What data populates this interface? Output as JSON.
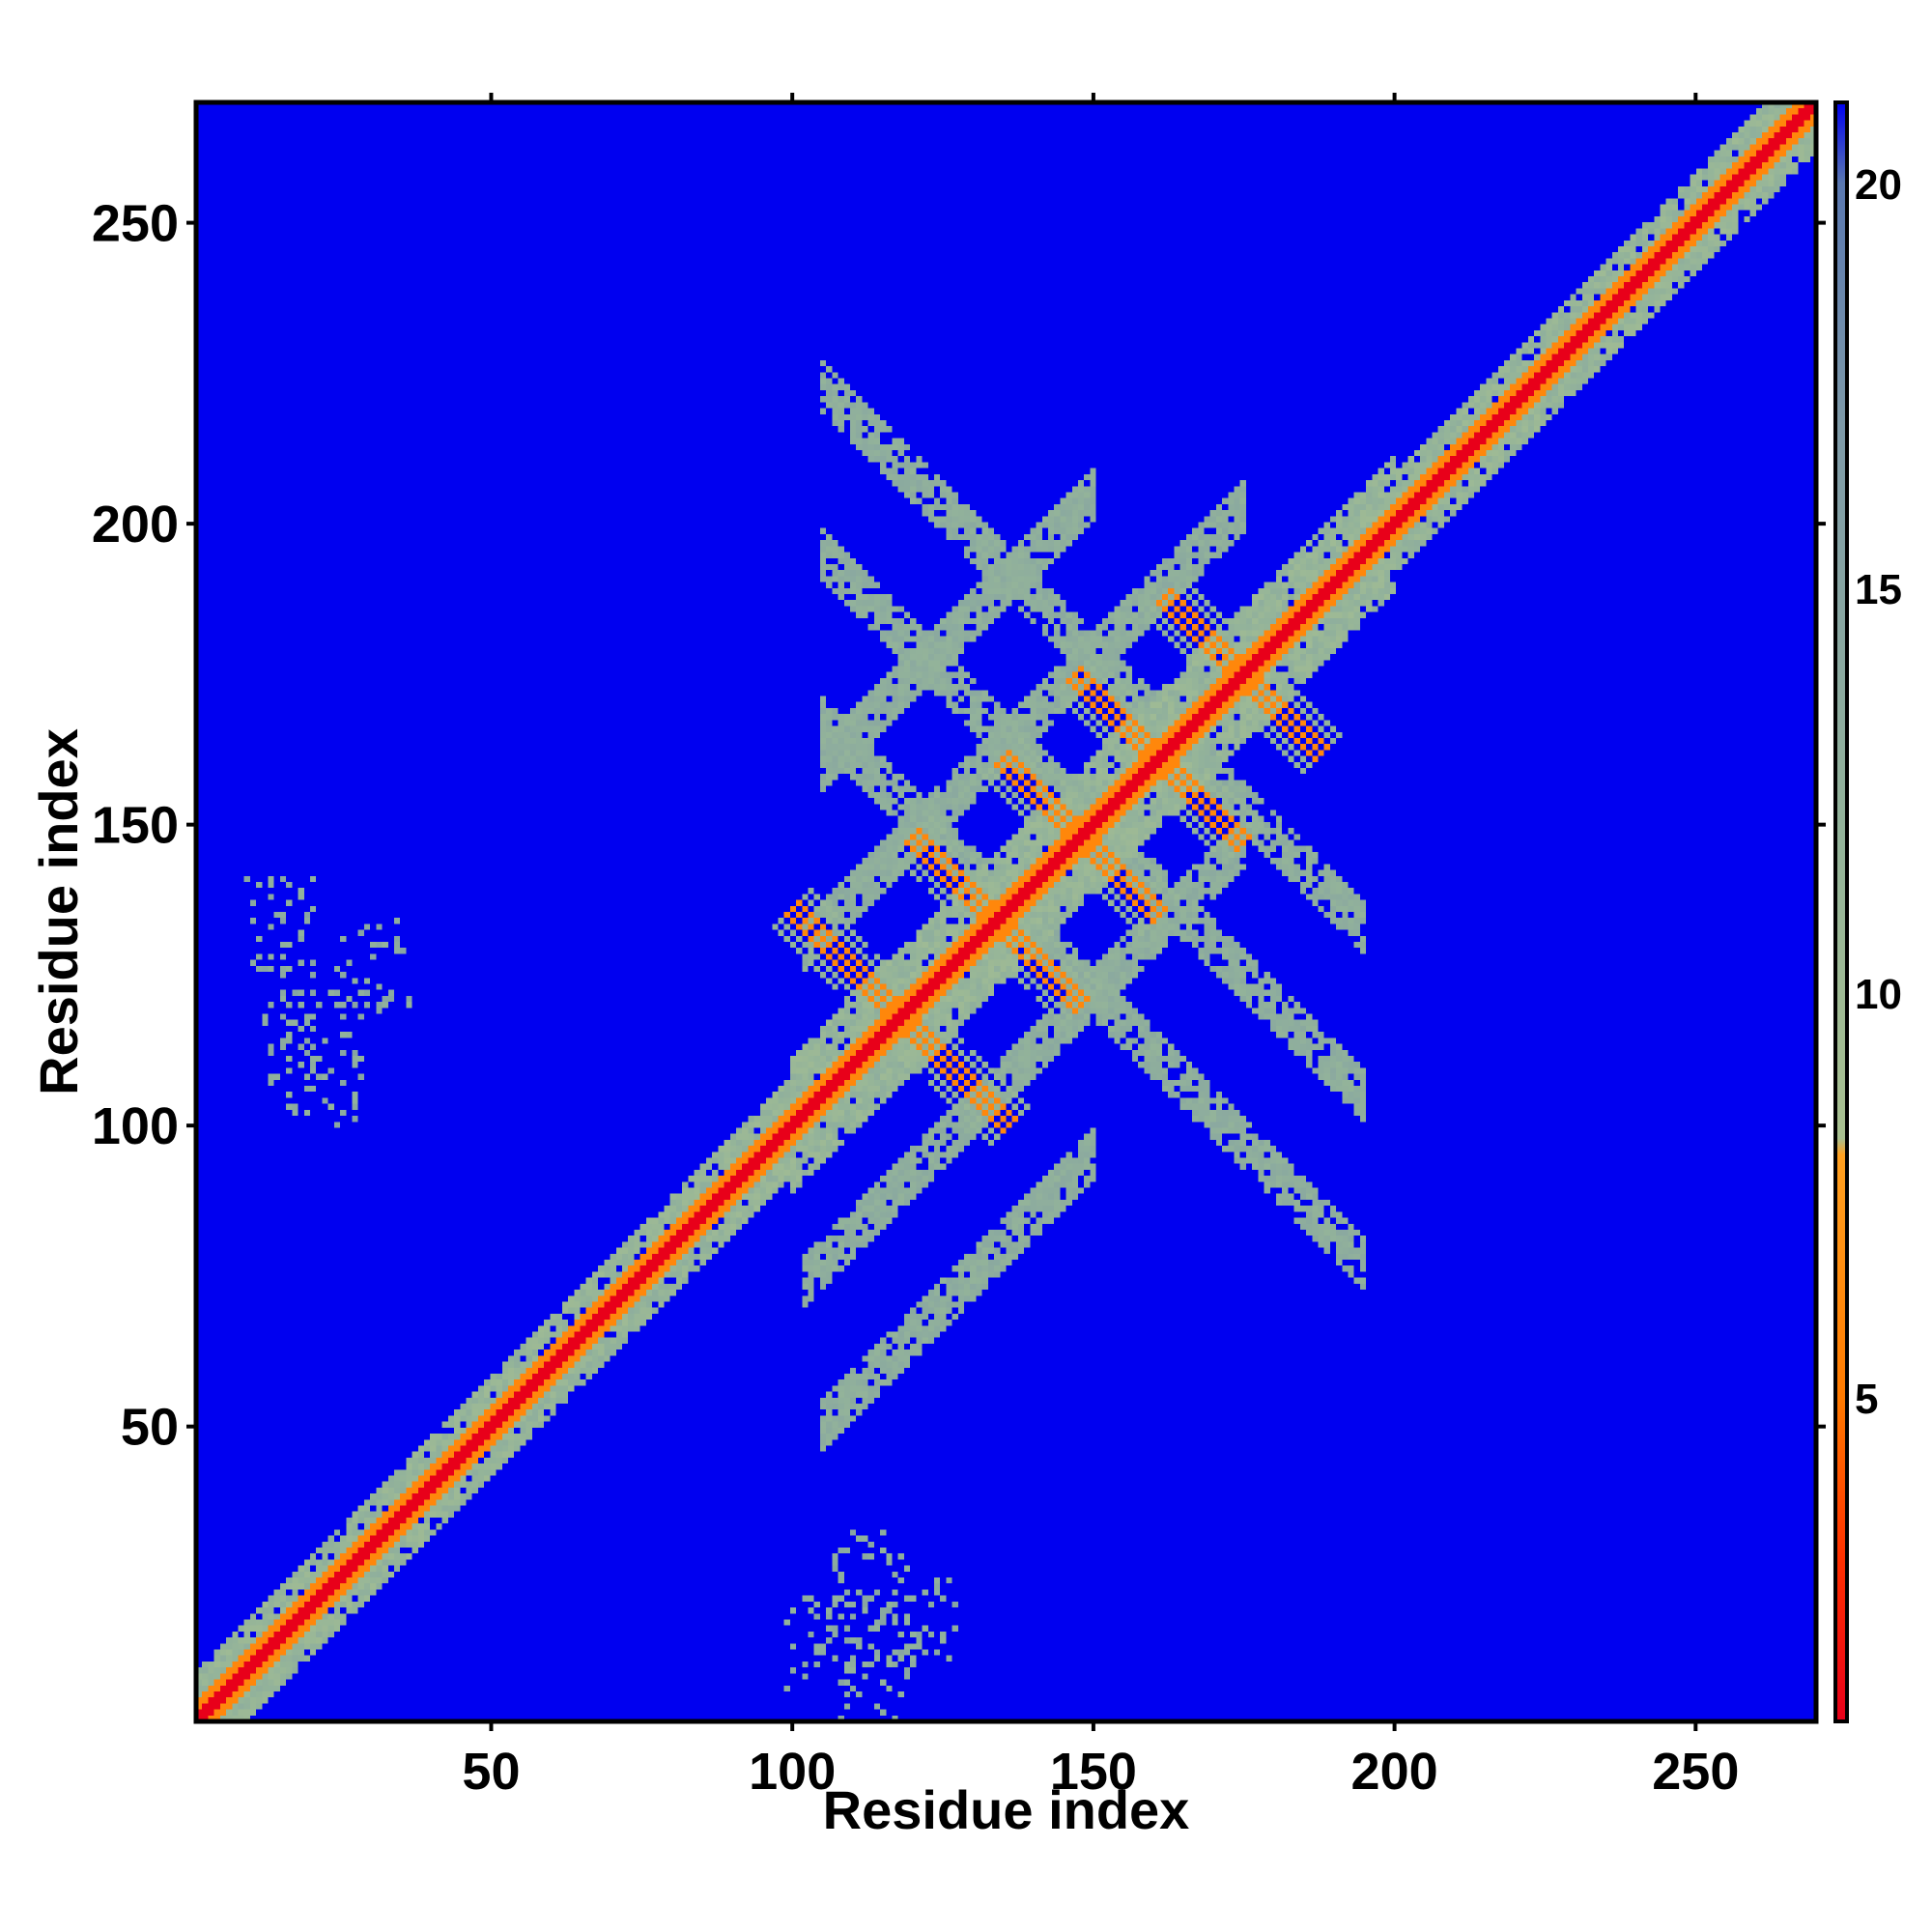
{
  "chart_data": {
    "type": "heatmap",
    "title": "",
    "xlabel": "Residue index",
    "ylabel": "Residue index",
    "xlim": [
      1,
      270
    ],
    "ylim": [
      1,
      270
    ],
    "x_ticks": [
      50,
      100,
      150,
      200,
      250
    ],
    "y_ticks": [
      50,
      100,
      150,
      200,
      250
    ],
    "colorbar": {
      "range": [
        1,
        21
      ],
      "ticks": [
        5,
        10,
        15,
        20
      ],
      "stops": [
        {
          "value": 1,
          "color": "#e8001a"
        },
        {
          "value": 3,
          "color": "#ff3000"
        },
        {
          "value": 5,
          "color": "#ff7a00"
        },
        {
          "value": 8,
          "color": "#ffa020"
        },
        {
          "value": 8.2,
          "color": "#a8c090"
        },
        {
          "value": 12,
          "color": "#93b39a"
        },
        {
          "value": 17,
          "color": "#7e9aa8"
        },
        {
          "value": 20,
          "color": "#5a78b0"
        },
        {
          "value": 21,
          "color": "#0000f0"
        }
      ]
    },
    "background_value": 21,
    "features": {
      "diagonal": {
        "from": 1,
        "to": 270,
        "core_value": 1,
        "band_value": 6,
        "halo_value": 11,
        "halo_width": 8
      },
      "helix_region": {
        "from": 100,
        "to": 200
      },
      "antidiagonal_strands": [
        {
          "center": 118,
          "half_length": 18,
          "value": 6
        },
        {
          "center": 134,
          "half_length": 14,
          "value": 6
        },
        {
          "center": 148,
          "half_length": 13,
          "value": 6
        },
        {
          "center": 161,
          "half_length": 14,
          "value": 6
        },
        {
          "center": 175,
          "half_length": 13,
          "value": 6
        }
      ],
      "parallel_bands": [
        {
          "offset": 28,
          "from": 102,
          "to": 175,
          "value": 12
        },
        {
          "offset": -28,
          "from": 102,
          "to": 175,
          "value": 12
        },
        {
          "offset": 55,
          "from": 105,
          "to": 150,
          "value": 12
        },
        {
          "offset": -55,
          "from": 105,
          "to": 150,
          "value": 12
        }
      ],
      "scattered_contacts": [
        {
          "i": 18,
          "j": 115,
          "value": 12
        },
        {
          "i": 22,
          "j": 108,
          "value": 12
        },
        {
          "i": 30,
          "j": 126,
          "value": 12
        },
        {
          "i": 15,
          "j": 133,
          "value": 12
        },
        {
          "i": 105,
          "j": 14,
          "value": 12
        },
        {
          "i": 112,
          "j": 24,
          "value": 12
        },
        {
          "i": 122,
          "j": 18,
          "value": 12
        },
        {
          "i": 114,
          "j": 7,
          "value": 12
        }
      ]
    }
  }
}
